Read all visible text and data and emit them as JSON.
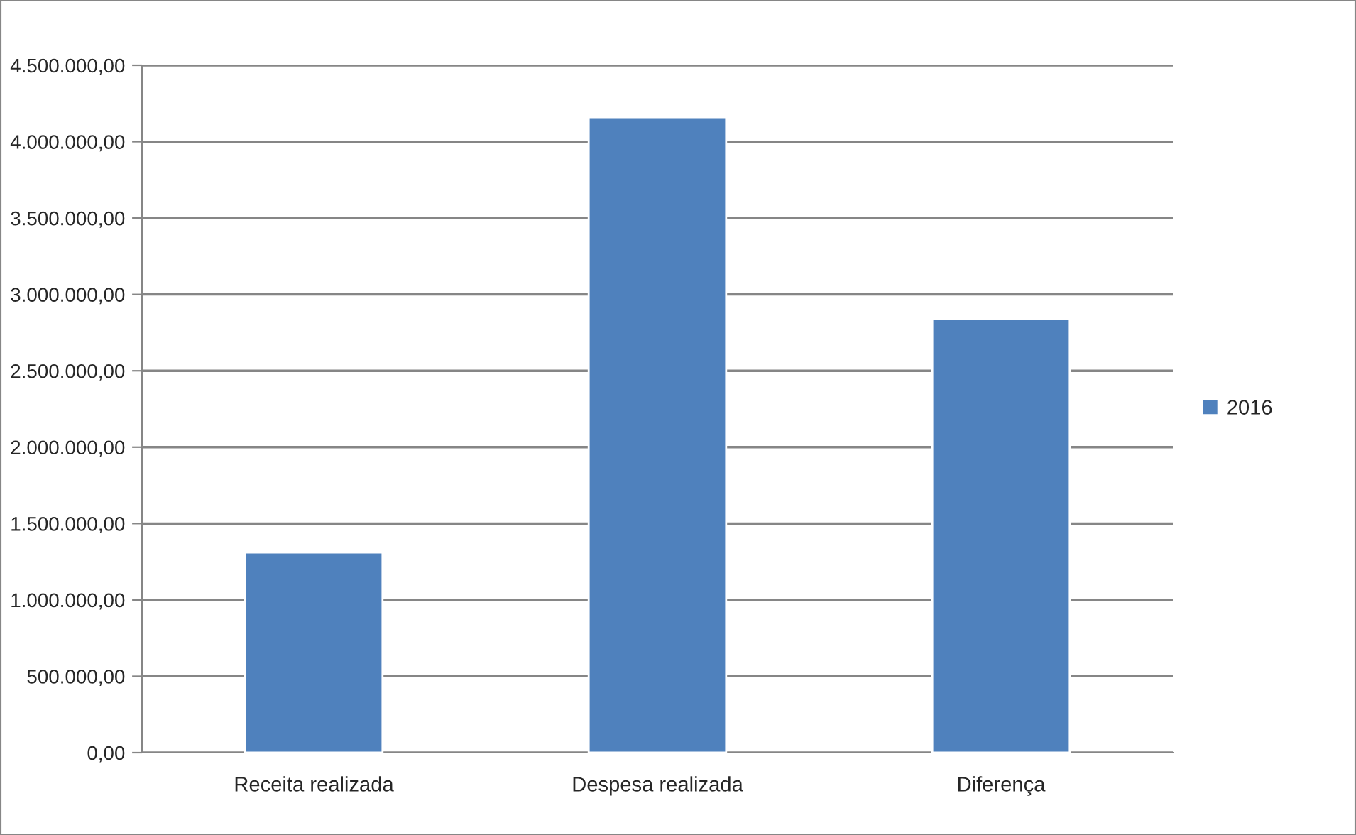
{
  "chart_data": {
    "type": "bar",
    "categories": [
      "Receita realizada",
      "Despesa realizada",
      "Diferença"
    ],
    "series": [
      {
        "name": "2016",
        "color": "#4f81bd",
        "values": [
          1310000,
          4160000,
          2840000
        ]
      }
    ],
    "ylim": [
      0,
      4500000
    ],
    "yticks": [
      {
        "value": 0,
        "label": "0,00"
      },
      {
        "value": 500000,
        "label": "500.000,00"
      },
      {
        "value": 1000000,
        "label": "1.000.000,00"
      },
      {
        "value": 1500000,
        "label": "1.500.000,00"
      },
      {
        "value": 2000000,
        "label": "2.000.000,00"
      },
      {
        "value": 2500000,
        "label": "2.500.000,00"
      },
      {
        "value": 3000000,
        "label": "3.000.000,00"
      },
      {
        "value": 3500000,
        "label": "3.500.000,00"
      },
      {
        "value": 4000000,
        "label": "4.000.000,00"
      },
      {
        "value": 4500000,
        "label": "4.500.000,00"
      }
    ],
    "grid": "y",
    "legend": "right"
  }
}
